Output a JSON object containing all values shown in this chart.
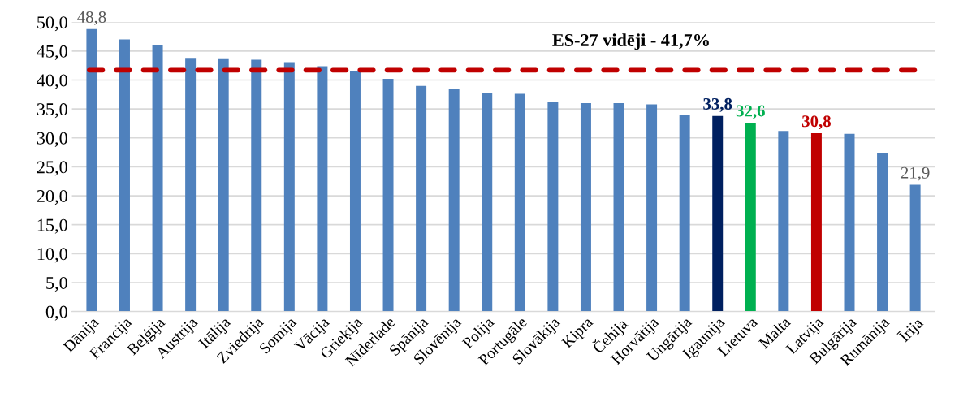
{
  "chart_data": {
    "type": "bar",
    "categories": [
      "Dānija",
      "Francija",
      "Beļģija",
      "Austrija",
      "Itālija",
      "Zviedrija",
      "Somija",
      "Vācija",
      "Grieķija",
      "Nīderlade",
      "Spānija",
      "Slovēnija",
      "Polija",
      "Portugāle",
      "Slovākija",
      "Kipra",
      "Čehija",
      "Horvātija",
      "Ungārija",
      "Igaunija",
      "Lietuva",
      "Malta",
      "Latvija",
      "Bulgārija",
      "Rumānija",
      "Īrija"
    ],
    "values": [
      48.8,
      47.0,
      46.0,
      43.7,
      43.6,
      43.5,
      43.1,
      42.4,
      41.5,
      40.2,
      39.0,
      38.5,
      37.7,
      37.6,
      36.2,
      36.0,
      36.0,
      35.8,
      34.0,
      33.8,
      32.6,
      31.2,
      30.8,
      30.7,
      27.3,
      21.9
    ],
    "color": "#4f81bd",
    "colors": [
      "#4f81bd",
      "#4f81bd",
      "#4f81bd",
      "#4f81bd",
      "#4f81bd",
      "#4f81bd",
      "#4f81bd",
      "#4f81bd",
      "#4f81bd",
      "#4f81bd",
      "#4f81bd",
      "#4f81bd",
      "#4f81bd",
      "#4f81bd",
      "#4f81bd",
      "#4f81bd",
      "#4f81bd",
      "#4f81bd",
      "#4f81bd",
      "#002060",
      "#00b050",
      "#4f81bd",
      "#c00000",
      "#4f81bd",
      "#4f81bd",
      "#4f81bd"
    ],
    "value_labels": [
      "48,8",
      null,
      null,
      null,
      null,
      null,
      null,
      null,
      null,
      null,
      null,
      null,
      null,
      null,
      null,
      null,
      null,
      null,
      null,
      "33,8",
      "32,6",
      null,
      "30,8",
      null,
      null,
      "21,9"
    ],
    "ylim": [
      0,
      50
    ],
    "yticks": [
      {
        "value": 0,
        "label": "0,0"
      },
      {
        "value": 5,
        "label": "5,0"
      },
      {
        "value": 10,
        "label": "10,0"
      },
      {
        "value": 15,
        "label": "15,0"
      },
      {
        "value": 20,
        "label": "20,0"
      },
      {
        "value": 25,
        "label": "25,0"
      },
      {
        "value": 30,
        "label": "30,0"
      },
      {
        "value": 35,
        "label": "35,0"
      },
      {
        "value": 40,
        "label": "40,0"
      },
      {
        "value": 45,
        "label": "45,0"
      },
      {
        "value": 50,
        "label": "50,0"
      }
    ],
    "grid": "y",
    "ref_lines": [
      {
        "axis": "y",
        "value": 41.7,
        "label": "ES-27 vidēji - 41,7%",
        "color": "#c00000",
        "line_style": "dashed"
      }
    ]
  }
}
